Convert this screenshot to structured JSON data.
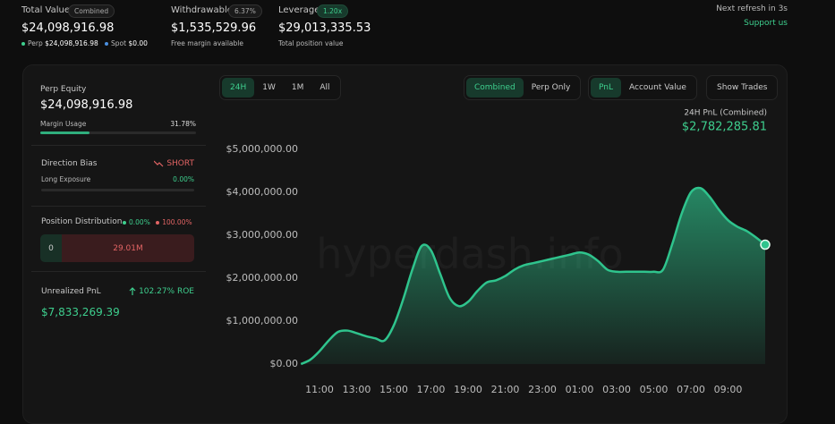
{
  "header": {
    "total_value": {
      "label": "Total Value",
      "badge": "Combined",
      "value": "$24,098,916.98",
      "perp_label": "Perp",
      "perp_value": "$24,098,916.98",
      "spot_label": "Spot",
      "spot_value": "$0.00"
    },
    "withdrawable": {
      "label": "Withdrawable",
      "badge": "6.37%",
      "value": "$1,535,529.96",
      "note": "Free margin available"
    },
    "leverage": {
      "label": "Leverage",
      "badge": "1.20x",
      "value": "$29,013,335.53",
      "note": "Total position value"
    },
    "refresh": "Next refresh in 3s",
    "support": "Support us"
  },
  "sidebar": {
    "perp_equity": {
      "label": "Perp Equity",
      "value": "$24,098,916.98",
      "margin_label": "Margin Usage",
      "margin_value": "31.78%"
    },
    "direction": {
      "label": "Direction Bias",
      "value": "SHORT",
      "exposure_label": "Long Exposure",
      "exposure_value": "0.00%"
    },
    "distribution": {
      "label": "Position Distribution",
      "long": "0.00%",
      "short": "100.00%",
      "long_value": "0",
      "short_value": "29.01M"
    },
    "unrealized": {
      "label": "Unrealized PnL",
      "roe": "102.27% ROE",
      "value": "$7,833,269.39"
    }
  },
  "controls": {
    "ranges": [
      "24H",
      "1W",
      "1M",
      "All"
    ],
    "scope": [
      "Combined",
      "Perp Only"
    ],
    "metric": [
      "PnL",
      "Account Value"
    ],
    "trades": "Show Trades"
  },
  "chart_data": {
    "type": "area",
    "title": "24H PnL (Combined)",
    "subtitle": "$2,782,285.81",
    "watermark": "hyperdash.info",
    "categories": [
      null,
      null,
      "11:00",
      null,
      null,
      null,
      "13:00",
      null,
      null,
      null,
      "15:00",
      null,
      null,
      null,
      "17:00",
      null,
      null,
      null,
      "19:00",
      null,
      null,
      null,
      "21:00",
      null,
      null,
      null,
      "23:00",
      null,
      null,
      null,
      "01:00",
      null,
      null,
      null,
      "03:00",
      null,
      null,
      null,
      "05:00",
      null,
      null,
      null,
      "07:00",
      null,
      null,
      null,
      "09:00",
      null,
      null,
      null,
      null
    ],
    "values": [
      0,
      100000,
      300000,
      550000,
      750000,
      780000,
      720000,
      650000,
      600000,
      550000,
      900000,
      1500000,
      2200000,
      2750000,
      2650000,
      2100000,
      1550000,
      1350000,
      1450000,
      1700000,
      1900000,
      1950000,
      2050000,
      2200000,
      2300000,
      2350000,
      2400000,
      2450000,
      2500000,
      2550000,
      2600000,
      2550000,
      2400000,
      2200000,
      2150000,
      2150000,
      2150000,
      2150000,
      2150000,
      2200000,
      2800000,
      3500000,
      4000000,
      4100000,
      3900000,
      3600000,
      3350000,
      3200000,
      3100000,
      2950000,
      2780000
    ],
    "color": "#2fc48d",
    "ylim": [
      0,
      5000000
    ],
    "yticks": [
      {
        "value": 0,
        "label": "$0.00"
      },
      {
        "value": 1000000,
        "label": "$1,000,000.00"
      },
      {
        "value": 2000000,
        "label": "$2,000,000.00"
      },
      {
        "value": 3000000,
        "label": "$3,000,000.00"
      },
      {
        "value": 4000000,
        "label": "$4,000,000.00"
      },
      {
        "value": 5000000,
        "label": "$5,000,000.00"
      }
    ],
    "grid": false
  }
}
